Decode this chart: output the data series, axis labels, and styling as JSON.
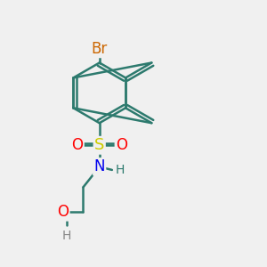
{
  "bg_color": "#f0f0f0",
  "bond_color": "#2d7a6e",
  "bond_width": 1.8,
  "atom_colors": {
    "Br": "#cc6600",
    "S": "#cccc00",
    "O": "#ff0000",
    "N": "#0000ee",
    "H": "#2d7a6e",
    "H_gray": "#888888"
  },
  "font_size": 12,
  "font_size_small": 10
}
